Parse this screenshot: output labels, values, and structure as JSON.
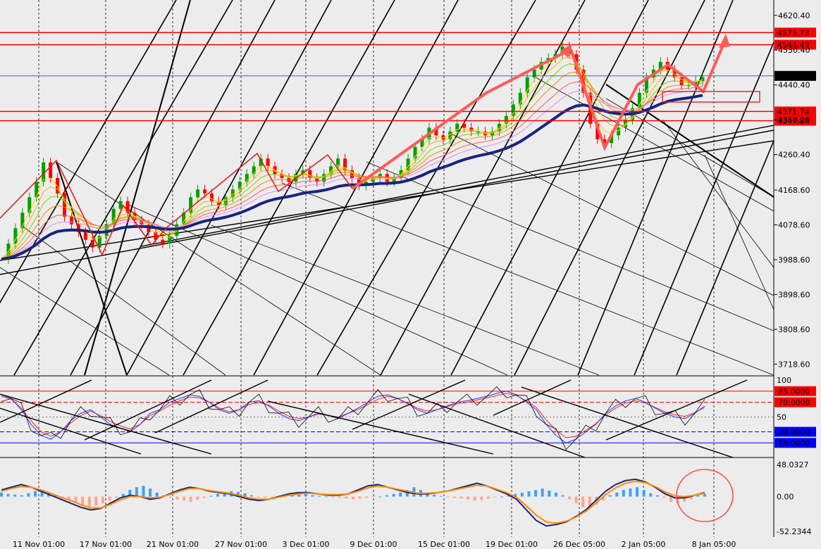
{
  "chart_data": [
    {
      "type": "candlestick",
      "panel": "price",
      "yticks": [
        "4620.40",
        "4530.40",
        "4440.40",
        "4350.20",
        "4260.40",
        "4168.60",
        "4078.60",
        "3988.60",
        "3898.60",
        "3808.60",
        "3718.60"
      ],
      "ylim": [
        3690,
        4660
      ],
      "x": [
        "11 Nov 01:00",
        "17 Nov 01:00",
        "21 Nov 01:00",
        "27 Nov 01:00",
        "3 Dec 01:00",
        "9 Dec 01:00",
        "15 Dec 01:00",
        "19 Dec 01:00",
        "26 Dec 05:00",
        "2 Jan 05:00",
        "8 Jan 05:00"
      ],
      "close_path": [
        3990,
        4030,
        4070,
        4110,
        4150,
        4190,
        4240,
        4200,
        4160,
        4100,
        4080,
        4060,
        4040,
        4020,
        4050,
        4080,
        4120,
        4140,
        4110,
        4090,
        4080,
        4060,
        4040,
        4030,
        4050,
        4080,
        4110,
        4150,
        4170,
        4160,
        4140,
        4130,
        4150,
        4170,
        4190,
        4210,
        4230,
        4250,
        4230,
        4210,
        4200,
        4190,
        4210,
        4220,
        4200,
        4190,
        4210,
        4230,
        4250,
        4220,
        4200,
        4180,
        4190,
        4200,
        4210,
        4190,
        4200,
        4220,
        4250,
        4280,
        4300,
        4330,
        4310,
        4300,
        4320,
        4340,
        4330,
        4320,
        4320,
        4310,
        4320,
        4340,
        4360,
        4390,
        4420,
        4460,
        4480,
        4500,
        4510,
        4520,
        4540,
        4520,
        4480,
        4420,
        4340,
        4300,
        4290,
        4310,
        4330,
        4350,
        4380,
        4420,
        4460,
        4480,
        4500,
        4480,
        4460,
        4440,
        4440,
        4450,
        4460
      ],
      "horizontal_levels": [
        {
          "value": "4575.73",
          "color": "#ff0000"
        },
        {
          "value": "4544.49",
          "color": "#ff0000"
        },
        {
          "value": "4463.81",
          "color": "#000000"
        },
        {
          "value": "4371.74",
          "color": "#ff0000"
        },
        {
          "value": "4347.84",
          "color": "#ff0000"
        }
      ],
      "annotations": "red zigzag pattern lines, red arrows pointing up, rectangle zone near 4450"
    },
    {
      "type": "line",
      "panel": "stochastic",
      "yticks": [
        "100",
        "50"
      ],
      "ylim": [
        0,
        100
      ],
      "levels": [
        {
          "value": "85.0000",
          "color": "#ff0000"
        },
        {
          "value": "70.0000",
          "color": "#ff0000"
        },
        {
          "value": "30.0000",
          "color": "#0000ff"
        },
        {
          "value": "15.0000",
          "color": "#0000ff"
        }
      ],
      "main_path": [
        80,
        75,
        60,
        40,
        25,
        20,
        30,
        45,
        55,
        60,
        50,
        40,
        35,
        30,
        40,
        55,
        60,
        70,
        75,
        80,
        78,
        70,
        60,
        55,
        60,
        70,
        72,
        65,
        55,
        48,
        45,
        50,
        55,
        52,
        48,
        55,
        62,
        70,
        78,
        80,
        75,
        68,
        60,
        55,
        60,
        65,
        70,
        72,
        75,
        78,
        82,
        85,
        80,
        70,
        60,
        40,
        25,
        15,
        20,
        30,
        40,
        55,
        65,
        72,
        75,
        70,
        62,
        55,
        50,
        48,
        55,
        65
      ],
      "signal_path": [
        78,
        74,
        62,
        45,
        30,
        24,
        30,
        42,
        52,
        58,
        52,
        44,
        38,
        34,
        40,
        52,
        58,
        66,
        72,
        77,
        76,
        70,
        62,
        57,
        60,
        67,
        70,
        66,
        58,
        51,
        48,
        50,
        54,
        52,
        50,
        55,
        60,
        67,
        74,
        78,
        75,
        69,
        62,
        58,
        60,
        64,
        68,
        70,
        73,
        76,
        79,
        82,
        79,
        72,
        63,
        46,
        32,
        22,
        24,
        32,
        41,
        53,
        62,
        69,
        72,
        69,
        63,
        57,
        53,
        51,
        56,
        63
      ]
    },
    {
      "type": "bar",
      "panel": "macd",
      "yticks": [
        "48.0327",
        "0.00",
        "-52.2344"
      ],
      "ylim": [
        -52.2344,
        48.0327
      ],
      "histogram": [
        6,
        4,
        3,
        2,
        5,
        8,
        10,
        6,
        2,
        -2,
        -5,
        -8,
        -12,
        -16,
        -14,
        -10,
        -6,
        -2,
        4,
        10,
        14,
        16,
        12,
        6,
        2,
        -2,
        -4,
        -6,
        -8,
        -5,
        -2,
        1,
        4,
        6,
        8,
        7,
        5,
        2,
        -1,
        -2,
        -1,
        0,
        1,
        2,
        3,
        4,
        2,
        1,
        0,
        -1,
        -2,
        -3,
        -4,
        -3,
        -2,
        -1,
        0,
        2,
        4,
        6,
        10,
        14,
        10,
        6,
        3,
        1,
        -1,
        -2,
        -3,
        -4,
        -6,
        -5,
        -3,
        -1,
        0,
        2,
        4,
        6,
        8,
        10,
        12,
        9,
        6,
        2,
        -4,
        -10,
        -16,
        -18,
        -12,
        -6,
        2,
        6,
        10,
        12,
        14,
        10,
        5,
        2,
        -2,
        -8,
        -10,
        -8,
        -4,
        2,
        4
      ],
      "macd_path": [
        10,
        14,
        18,
        14,
        8,
        2,
        -4,
        -10,
        -16,
        -20,
        -18,
        -10,
        -2,
        2,
        0,
        -4,
        -2,
        4,
        10,
        14,
        12,
        8,
        6,
        4,
        0,
        -4,
        -6,
        -4,
        0,
        4,
        6,
        6,
        4,
        2,
        2,
        4,
        10,
        16,
        18,
        14,
        10,
        6,
        4,
        4,
        6,
        8,
        12,
        16,
        20,
        16,
        10,
        4,
        -4,
        -20,
        -36,
        -44,
        -42,
        -38,
        -30,
        -20,
        -6,
        8,
        18,
        24,
        26,
        22,
        14,
        4,
        -2,
        -2,
        2,
        6
      ],
      "signal_path": [
        8,
        12,
        15,
        14,
        10,
        5,
        -1,
        -6,
        -12,
        -17,
        -17,
        -12,
        -5,
        0,
        0,
        -2,
        -1,
        3,
        8,
        12,
        12,
        9,
        7,
        5,
        2,
        -2,
        -4,
        -4,
        -1,
        2,
        4,
        5,
        4,
        3,
        3,
        4,
        8,
        13,
        16,
        14,
        11,
        8,
        5,
        5,
        6,
        8,
        11,
        14,
        17,
        16,
        11,
        6,
        -1,
        -14,
        -28,
        -38,
        -40,
        -37,
        -31,
        -22,
        -10,
        3,
        13,
        20,
        23,
        21,
        15,
        7,
        1,
        0,
        2,
        5
      ]
    }
  ],
  "colors": {
    "background": "#ececec",
    "bull_candle": "#00a000",
    "bear_candle": "#ff0000",
    "ema_fast": "#ff7f27",
    "ema_slow": "#1a237e",
    "stoch_main": "#1e3cff",
    "stoch_signal": "#000000",
    "macd_line": "#1a237e",
    "macd_signal": "#ff8c00",
    "hist_pos": "#3fa0ff",
    "hist_neg": "#ffa58a"
  }
}
